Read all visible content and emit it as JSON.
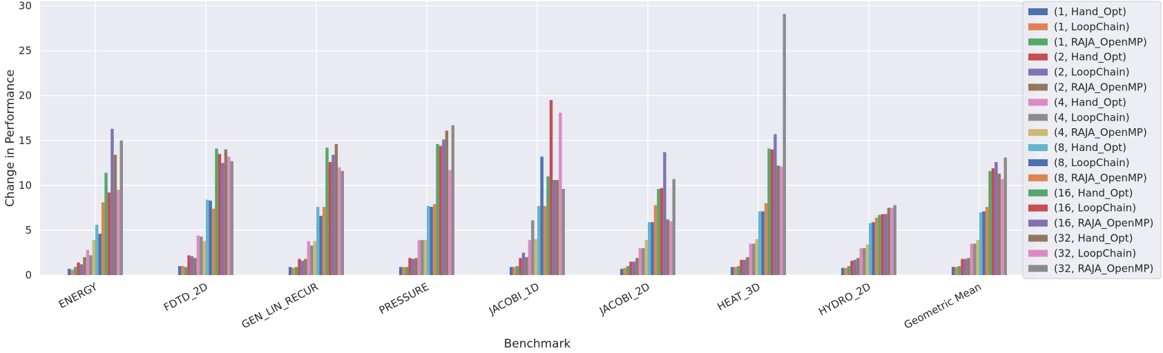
{
  "chart_data": {
    "type": "bar",
    "title": "",
    "xlabel": "Benchmark",
    "ylabel": "Change in Performance",
    "ylim": [
      0,
      30.5
    ],
    "yticks": [
      0,
      5,
      10,
      15,
      20,
      25,
      30
    ],
    "grid": true,
    "legend_position": "upper-right",
    "categories": [
      "ENERGY",
      "FDTD_2D",
      "GEN_LIN_RECUR",
      "PRESSURE",
      "JACOBI_1D",
      "JACOBI_2D",
      "HEAT_3D",
      "HYDRO_2D",
      "Geometric Mean"
    ],
    "colors": [
      "#4c72b0",
      "#dd8452",
      "#55a868",
      "#c44e52",
      "#8172b3",
      "#937860",
      "#da8bc3",
      "#8c8c8c",
      "#ccb974",
      "#64b5cd",
      "#4c72b0",
      "#dd8452",
      "#55a868",
      "#c44e52",
      "#8172b3",
      "#937860",
      "#da8bc3",
      "#8c8c8c"
    ],
    "series": [
      {
        "name": "(1, Hand_Opt)",
        "values": [
          0.7,
          1.0,
          0.9,
          0.9,
          0.9,
          0.7,
          0.9,
          0.8,
          0.9
        ]
      },
      {
        "name": "(1, LoopChain)",
        "values": [
          0.6,
          1.0,
          0.8,
          0.9,
          0.9,
          0.8,
          0.9,
          0.8,
          0.9
        ]
      },
      {
        "name": "(1, RAJA_OpenMP)",
        "values": [
          0.9,
          0.9,
          0.9,
          0.9,
          1.0,
          1.0,
          1.0,
          1.0,
          1.0
        ]
      },
      {
        "name": "(2, Hand_Opt)",
        "values": [
          1.4,
          2.2,
          1.8,
          1.9,
          1.9,
          1.5,
          1.7,
          1.6,
          1.8
        ]
      },
      {
        "name": "(2, LoopChain)",
        "values": [
          1.2,
          2.1,
          1.6,
          1.8,
          2.5,
          1.5,
          1.7,
          1.7,
          1.8
        ]
      },
      {
        "name": "(2, RAJA_OpenMP)",
        "values": [
          2.0,
          1.9,
          1.8,
          1.9,
          2.0,
          1.9,
          2.0,
          1.9,
          1.9
        ]
      },
      {
        "name": "(4, Hand_Opt)",
        "values": [
          2.8,
          4.4,
          3.8,
          3.9,
          3.9,
          3.0,
          3.5,
          3.0,
          3.5
        ]
      },
      {
        "name": "(4, LoopChain)",
        "values": [
          2.2,
          4.3,
          3.3,
          3.9,
          6.1,
          3.0,
          3.5,
          3.0,
          3.5
        ]
      },
      {
        "name": "(4, RAJA_OpenMP)",
        "values": [
          3.9,
          3.8,
          3.8,
          3.9,
          4.0,
          3.9,
          4.0,
          3.4,
          3.9
        ]
      },
      {
        "name": "(8, Hand_Opt)",
        "values": [
          5.6,
          8.4,
          7.6,
          7.7,
          7.7,
          5.9,
          7.1,
          5.8,
          7.0
        ]
      },
      {
        "name": "(8, LoopChain)",
        "values": [
          4.6,
          8.3,
          6.6,
          7.6,
          13.2,
          5.9,
          7.1,
          5.9,
          7.1
        ]
      },
      {
        "name": "(8, RAJA_OpenMP)",
        "values": [
          8.1,
          7.4,
          7.6,
          7.9,
          7.7,
          7.8,
          8.0,
          6.4,
          7.6
        ]
      },
      {
        "name": "(16, Hand_Opt)",
        "values": [
          11.4,
          14.1,
          14.2,
          14.6,
          11.0,
          9.6,
          14.1,
          6.7,
          11.6
        ]
      },
      {
        "name": "(16, LoopChain)",
        "values": [
          9.2,
          13.5,
          12.6,
          14.4,
          19.5,
          9.7,
          14.0,
          6.8,
          11.9
        ]
      },
      {
        "name": "(16, RAJA_OpenMP)",
        "values": [
          16.3,
          12.5,
          13.4,
          15.1,
          10.6,
          13.7,
          15.7,
          6.8,
          12.6
        ]
      },
      {
        "name": "(32, Hand_Opt)",
        "values": [
          13.4,
          14.0,
          14.6,
          16.1,
          10.6,
          6.2,
          12.2,
          7.5,
          11.3
        ]
      },
      {
        "name": "(32, LoopChain)",
        "values": [
          9.5,
          13.2,
          12.0,
          11.7,
          18.1,
          6.0,
          12.1,
          7.5,
          10.7
        ]
      },
      {
        "name": "(32, RAJA_OpenMP)",
        "values": [
          15.0,
          12.7,
          11.6,
          16.7,
          9.6,
          10.7,
          29.1,
          7.8,
          13.1
        ]
      }
    ]
  }
}
